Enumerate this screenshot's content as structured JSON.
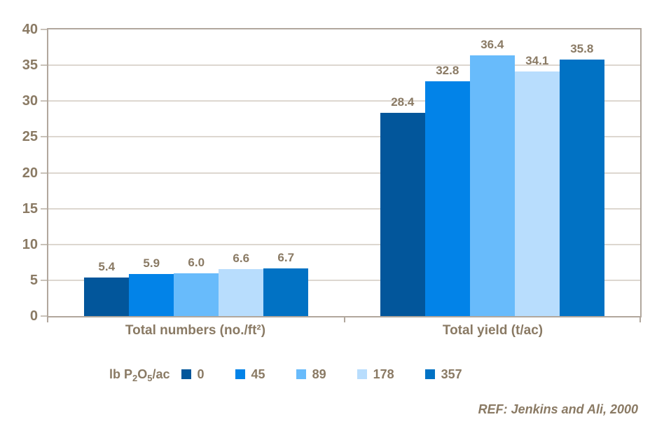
{
  "chart_data": {
    "type": "bar",
    "title": "",
    "xlabel": "",
    "ylabel": "",
    "categories": [
      "Total numbers (no./ft²)",
      "Total yield (t/ac)"
    ],
    "series": [
      {
        "name": "0",
        "color": "#02569b",
        "values": [
          5.4,
          28.4
        ]
      },
      {
        "name": "45",
        "color": "#0283e8",
        "values": [
          5.9,
          32.8
        ]
      },
      {
        "name": "89",
        "color": "#68bbfb",
        "values": [
          6.0,
          36.4
        ]
      },
      {
        "name": "178",
        "color": "#b8ddfd",
        "values": [
          6.6,
          34.1
        ]
      },
      {
        "name": "357",
        "color": "#0172c4",
        "values": [
          6.7,
          35.8
        ]
      }
    ],
    "data_labels": [
      "5.4",
      "5.9",
      "6.0",
      "6.6",
      "6.7",
      "28.4",
      "32.8",
      "36.4",
      "34.1",
      "35.8"
    ],
    "ylim": [
      0,
      40
    ],
    "yticks": [
      0,
      5,
      10,
      15,
      20,
      25,
      30,
      35,
      40
    ],
    "grid": true,
    "legend_position": "bottom",
    "legend_title_parts": [
      "lb P",
      "2",
      "O",
      "5",
      "/ac"
    ]
  },
  "footer": {
    "ref_label": "REF: Jenkins and Ali, 2000"
  },
  "colors": {
    "text": "#8a7a64",
    "frame": "#b1a79d",
    "grid": "#ddd7d0",
    "tick": "#c9c2b9",
    "background": "#ffffff"
  }
}
